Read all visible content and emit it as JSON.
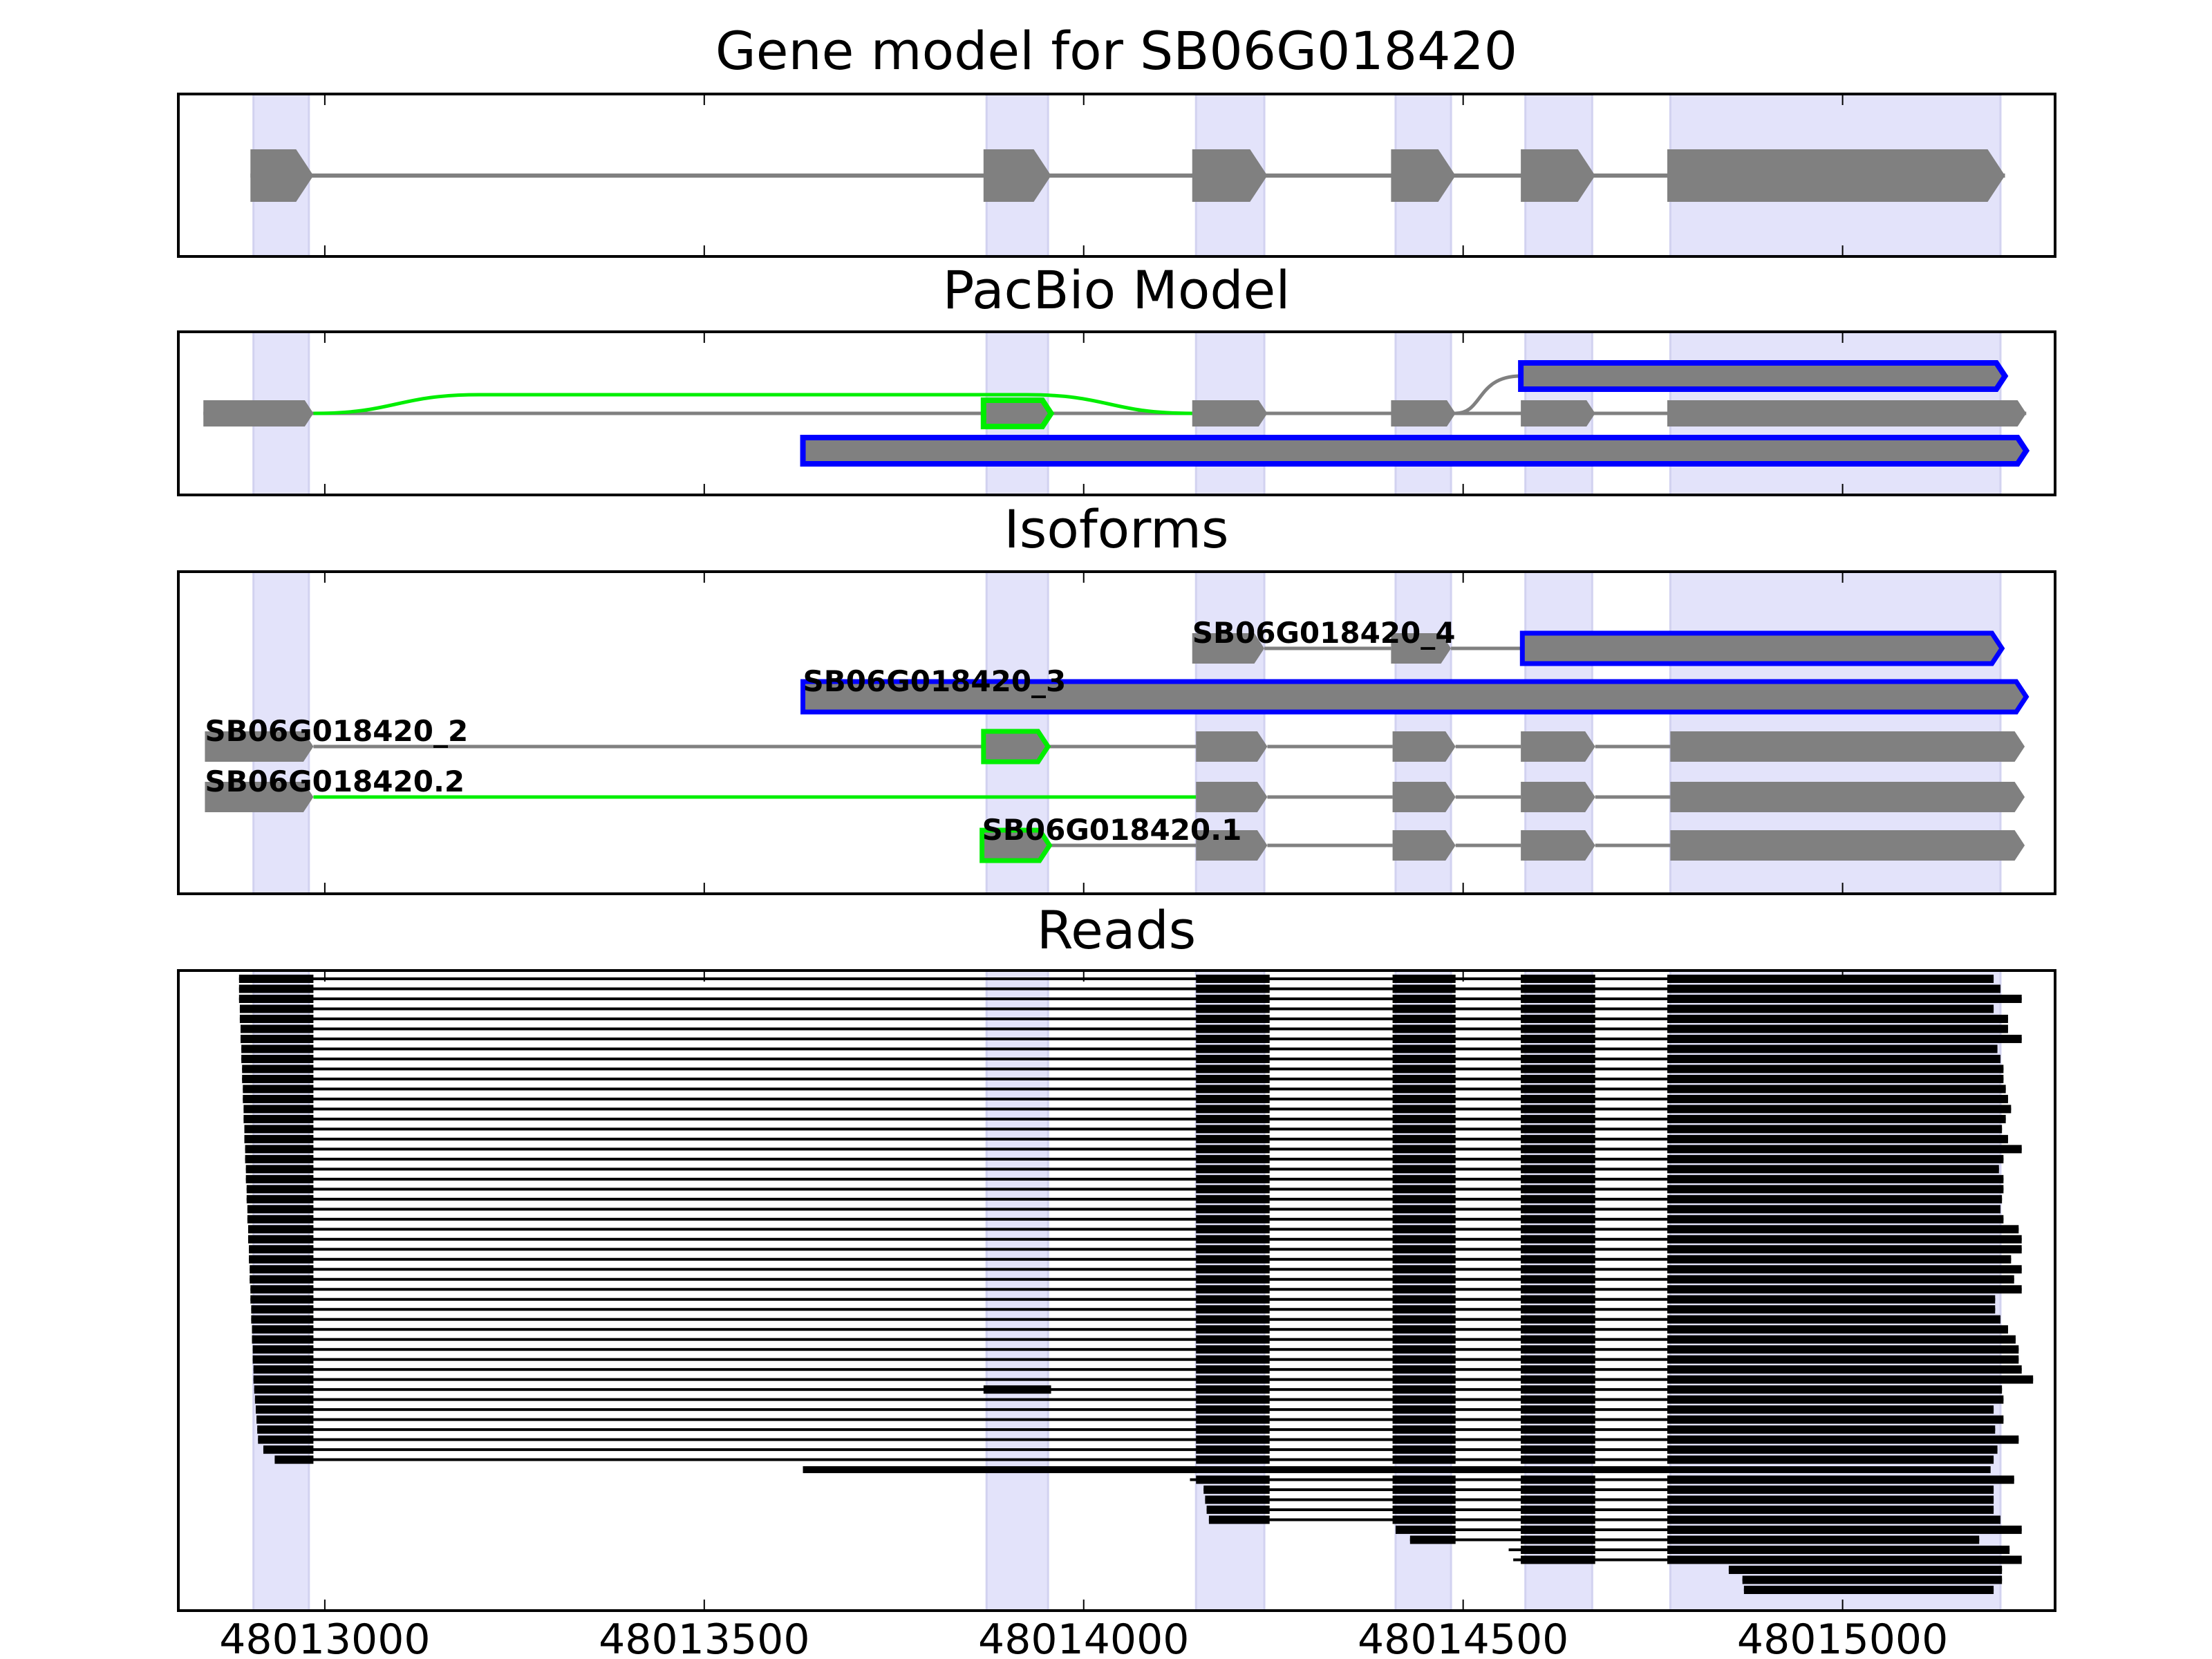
{
  "chart_data": {
    "type": "bar",
    "xlim": [
      48012807,
      48015280
    ],
    "xticks": [
      48013000,
      48013500,
      48014000,
      48014500,
      48015000
    ],
    "xtick_labels": [
      "48013000",
      "48013500",
      "48014000",
      "48014500",
      "48015000"
    ],
    "grid": false,
    "colors": {
      "exon": "#808080",
      "intron": "#808080",
      "highlight": "#e3e3fa",
      "novel": "#0000ff",
      "alt": "#00ee00",
      "read": "#000000"
    },
    "highlight_regions": [
      [
        48012906,
        48012979
      ],
      [
        48013872,
        48013953
      ],
      [
        48014148,
        48014238
      ],
      [
        48014411,
        48014484
      ],
      [
        48014582,
        48014670
      ],
      [
        48014773,
        48015208
      ]
    ],
    "panels": [
      {
        "title": "Gene model for SB06G018420",
        "rows": [
          {
            "exons": [
              [
                48012902,
                48012985
              ],
              [
                48013868,
                48013957
              ],
              [
                48014143,
                48014242
              ],
              [
                48014405,
                48014490
              ],
              [
                48014576,
                48014674
              ],
              [
                48014769,
                48015214
              ]
            ]
          }
        ]
      },
      {
        "title": "PacBio Model",
        "rows": [
          {
            "exons": [
              [
                48014576,
                48015214
              ]
            ],
            "outline": "novel"
          },
          {
            "exons": [
              [
                48012840,
                48012985
              ],
              [
                48013868,
                48013957
              ],
              [
                48014143,
                48014242
              ],
              [
                48014405,
                48014490
              ],
              [
                48014576,
                48014674
              ],
              [
                48014769,
                48015242
              ]
            ],
            "outlined_exon": 1,
            "outline": "alt"
          },
          {
            "exons": [
              [
                48013630,
                48015242
              ]
            ],
            "outline": "novel"
          }
        ],
        "skip_junction": [
          48012985,
          48014143
        ],
        "branch_junction": [
          48014490,
          48014576
        ]
      },
      {
        "title": "Isoforms",
        "rows": [
          {
            "label": "SB06G018420_4",
            "exons": [
              [
                48014143,
                48014238
              ],
              [
                48014405,
                48014484
              ],
              [
                48014578,
                48015210
              ]
            ],
            "outlined_exon": 2,
            "outline": "novel"
          },
          {
            "label": "SB06G018420_3",
            "exons": [
              [
                48013630,
                48015242
              ]
            ],
            "outlined_exon": 0,
            "outline": "novel"
          },
          {
            "label": "SB06G018420_2",
            "exons": [
              [
                48012842,
                48012985
              ],
              [
                48013868,
                48013953
              ],
              [
                48014148,
                48014242
              ],
              [
                48014407,
                48014490
              ],
              [
                48014576,
                48014674
              ],
              [
                48014773,
                48015240
              ]
            ],
            "outlined_exon": 1,
            "outline": "alt"
          },
          {
            "label": "SB06G018420.2",
            "exons": [
              [
                48012842,
                48012985
              ],
              [
                48014148,
                48014242
              ],
              [
                48014407,
                48014490
              ],
              [
                48014576,
                48014674
              ],
              [
                48014773,
                48015240
              ]
            ],
            "alt_intron": 0
          },
          {
            "label": "SB06G018420.1",
            "exons": [
              [
                48013866,
                48013955
              ],
              [
                48014148,
                48014242
              ],
              [
                48014407,
                48014490
              ],
              [
                48014576,
                48014674
              ],
              [
                48014773,
                48015240
              ]
            ],
            "outlined_exon": 0,
            "outline": "alt"
          }
        ]
      },
      {
        "title": "Reads",
        "read_exons": [
          [
            48012800,
            48012985
          ],
          [
            48014148,
            48014245
          ],
          [
            48014407,
            48014490
          ],
          [
            48014576,
            48014674
          ],
          [
            48014769,
            48015300
          ]
        ],
        "reads": [
          [
            48012887,
            48015199
          ],
          [
            48012887,
            48015208
          ],
          [
            48012887,
            48015236
          ],
          [
            48012888,
            48015199
          ],
          [
            48012888,
            48015218
          ],
          [
            48012889,
            48015218
          ],
          [
            48012889,
            48015236
          ],
          [
            48012890,
            48015204
          ],
          [
            48012890,
            48015208
          ],
          [
            48012891,
            48015212
          ],
          [
            48012891,
            48015212
          ],
          [
            48012892,
            48015215
          ],
          [
            48012892,
            48015218
          ],
          [
            48012893,
            48015222
          ],
          [
            48012893,
            48015215
          ],
          [
            48012894,
            48015210
          ],
          [
            48012894,
            48015218
          ],
          [
            48012895,
            48015236
          ],
          [
            48012895,
            48015212
          ],
          [
            48012896,
            48015206
          ],
          [
            48012896,
            48015212
          ],
          [
            48012897,
            48015212
          ],
          [
            48012897,
            48015210
          ],
          [
            48012898,
            48015208
          ],
          [
            48012898,
            48015212
          ],
          [
            48012899,
            48015232
          ],
          [
            48012899,
            48015236
          ],
          [
            48012900,
            48015236
          ],
          [
            48012900,
            48015222
          ],
          [
            48012901,
            48015236
          ],
          [
            48012901,
            48015226
          ],
          [
            48012902,
            48015236
          ],
          [
            48012902,
            48015201
          ],
          [
            48012903,
            48015201
          ],
          [
            48012903,
            48015208
          ],
          [
            48012904,
            48015218
          ],
          [
            48012904,
            48015228
          ],
          [
            48012905,
            48015232
          ],
          [
            48012905,
            48015232
          ],
          [
            48012906,
            48015236
          ],
          [
            48012906,
            48015251
          ],
          [
            48012907,
            48015210,
            1
          ],
          [
            48012908,
            48015212
          ],
          [
            48012909,
            48015199
          ],
          [
            48012910,
            48015212
          ],
          [
            48012911,
            48015201
          ],
          [
            48012912,
            48015232
          ],
          [
            48012919,
            48015204
          ],
          [
            48012934,
            48015199
          ],
          [
            48013630,
            48015195,
            2
          ],
          [
            48014140,
            48015226
          ],
          [
            48014158,
            48015199
          ],
          [
            48014160,
            48015199
          ],
          [
            48014162,
            48015199
          ],
          [
            48014165,
            48015208
          ],
          [
            48014411,
            48015236
          ],
          [
            48014430,
            48015180
          ],
          [
            48014560,
            48015220
          ],
          [
            48014566,
            48015236
          ],
          [
            48014850,
            48015210
          ],
          [
            48014868,
            48015210
          ],
          [
            48014870,
            48015199
          ]
        ]
      }
    ]
  }
}
